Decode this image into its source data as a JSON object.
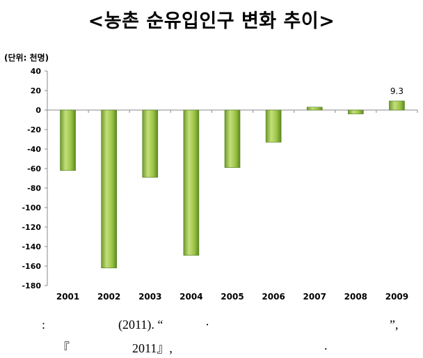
{
  "title": "<농촌 순유입인구 변화 추이>",
  "unit_label": "(단위: 천명)",
  "chart_data": {
    "type": "bar",
    "categories": [
      "2001",
      "2002",
      "2003",
      "2004",
      "2005",
      "2006",
      "2007",
      "2008",
      "2009"
    ],
    "values": [
      -62,
      -162,
      -69,
      -149,
      -59,
      -33,
      3,
      -4,
      9.3
    ],
    "ylim": [
      -180,
      40
    ],
    "yticks": [
      40,
      20,
      0,
      -20,
      -40,
      -60,
      -80,
      -100,
      -120,
      -140,
      -160,
      -180
    ],
    "data_labels": [
      {
        "category": "2009",
        "text": "9.3"
      }
    ],
    "grid": false,
    "legend": "none",
    "colors": {
      "bar_light": "#c4df7a",
      "bar_mid": "#9cc447",
      "bar_dark": "#6f9a2a",
      "bar_edge": "#4f7a1c"
    }
  },
  "source_note": {
    "line1": {
      "colon": ":",
      "year": "(2011). “",
      "bullet": "·",
      "quote_end": "”,"
    },
    "line2": {
      "bracket_open": "『",
      "year_close": "2011』,",
      "period": "."
    }
  }
}
